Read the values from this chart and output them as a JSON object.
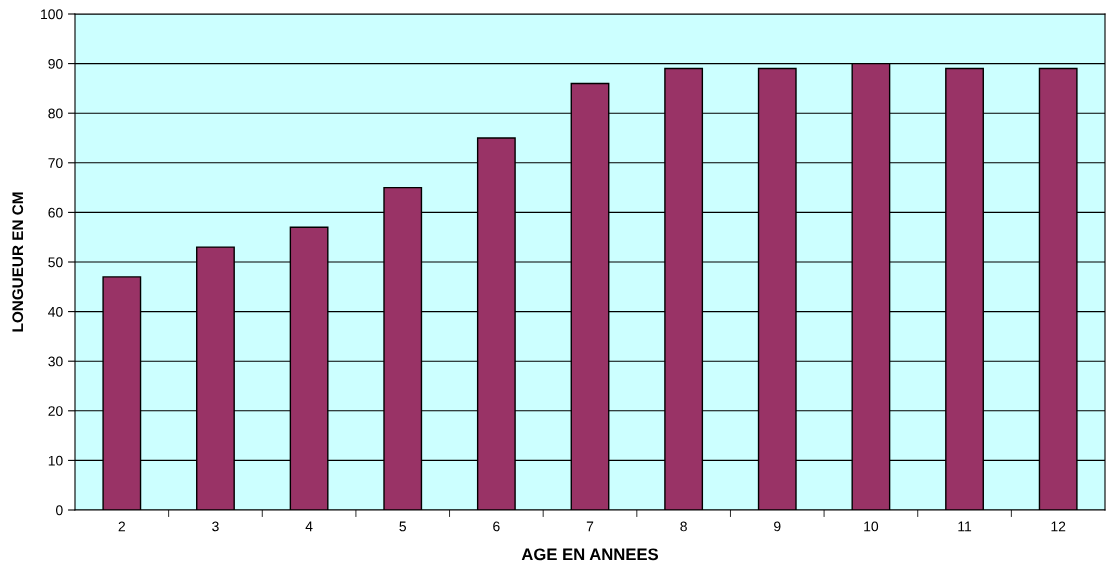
{
  "chart_data": {
    "type": "bar",
    "xlabel": "AGE EN ANNEES",
    "ylabel": "LONGUEUR EN CM",
    "categories": [
      "2",
      "3",
      "4",
      "5",
      "6",
      "7",
      "8",
      "9",
      "10",
      "11",
      "12"
    ],
    "values": [
      47,
      53,
      57,
      65,
      75,
      86,
      89,
      89,
      90,
      89,
      89
    ],
    "color": "#993366",
    "ylim": [
      0,
      100
    ],
    "yticks": [
      0,
      10,
      20,
      30,
      40,
      50,
      60,
      70,
      80,
      90,
      100
    ],
    "grid": "y",
    "legend": false
  }
}
